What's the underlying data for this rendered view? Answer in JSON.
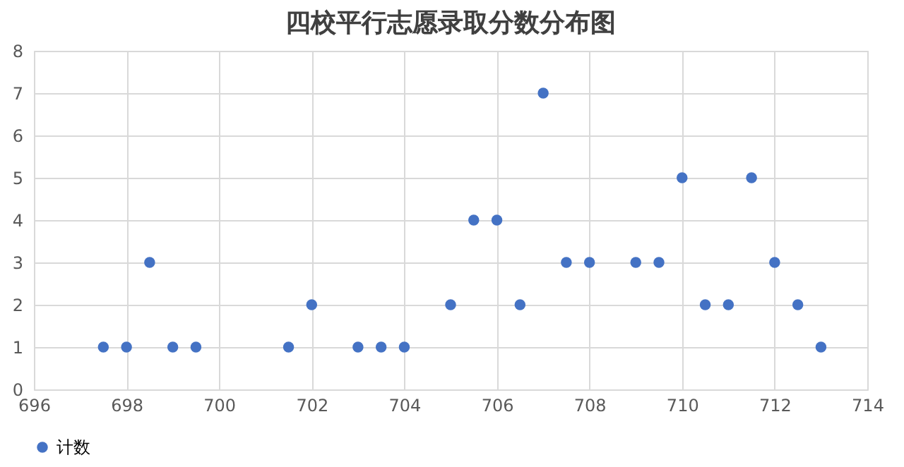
{
  "chart_data": {
    "type": "scatter",
    "title": "四校平行志愿录取分数分布图",
    "x": [
      697.5,
      698,
      698.5,
      699,
      699.5,
      701.5,
      702,
      703,
      703.5,
      704,
      705,
      705.5,
      706,
      706.5,
      707,
      707.5,
      708,
      709,
      709.5,
      710,
      710.5,
      711,
      711.5,
      712,
      712.5,
      713
    ],
    "series": [
      {
        "name": "计数",
        "color": "#4472c4",
        "values": [
          1,
          1,
          3,
          1,
          1,
          1,
          2,
          1,
          1,
          1,
          2,
          4,
          4,
          2,
          7,
          3,
          3,
          3,
          3,
          5,
          2,
          2,
          5,
          3,
          2,
          1
        ]
      }
    ],
    "xlim": [
      696,
      714
    ],
    "xticks": [
      696,
      698,
      700,
      702,
      704,
      706,
      708,
      710,
      712,
      714
    ],
    "ylim": [
      0,
      8
    ],
    "yticks": [
      0,
      1,
      2,
      3,
      4,
      5,
      6,
      7,
      8
    ],
    "grid": true,
    "legend": "bottom",
    "marker": "circle"
  }
}
